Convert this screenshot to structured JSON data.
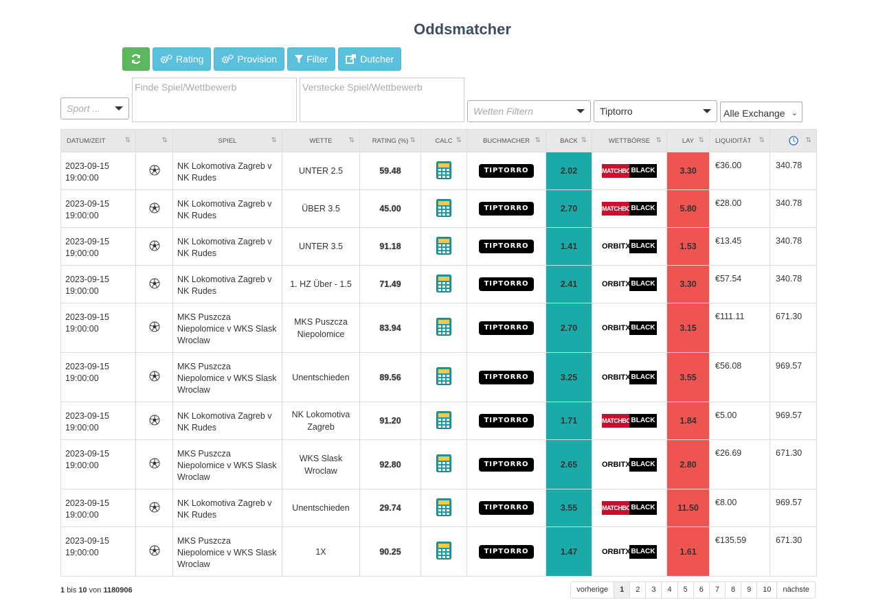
{
  "page": {
    "title": "Oddsmatcher"
  },
  "toolbar": {
    "refresh_icon": "refresh-icon",
    "rating_label": "Rating",
    "provision_label": "Provision",
    "filter_label": "Filter",
    "dutcher_label": "Dutcher"
  },
  "filters": {
    "sport_placeholder": "Sport ...",
    "find_placeholder": "Finde Spiel/Wettbewerb",
    "hide_placeholder": "Verstecke Spiel/Wettbewerb",
    "bets_placeholder": "Wetten Filtern",
    "bookmaker_value": "Tiptorro",
    "exchange_value": "Alle Exchange"
  },
  "table": {
    "headers": {
      "datetime": "DATUM/ZEIT",
      "game": "SPIEL",
      "bet": "WETTE",
      "rating": "RATING (%)",
      "calc": "CALC",
      "bookmaker": "BUCHMACHER",
      "back": "BACK",
      "exchange": "WETTBÖRSE",
      "lay": "LAY",
      "liquidity": "LIQUIDITÄT"
    },
    "rows": [
      {
        "date": "2023-09-15",
        "time": "19:00:00",
        "game": "NK Lokomotiva Zagreb v NK Rudes",
        "bet": "UNTER 2.5",
        "rating": "59.48",
        "bookmaker": "TIPTORRO",
        "back": "2.02",
        "exchange": "MATCHBOOK",
        "lay": "3.30",
        "liquidity": "€36.00",
        "time_val": "340.78"
      },
      {
        "date": "2023-09-15",
        "time": "19:00:00",
        "game": "NK Lokomotiva Zagreb v NK Rudes",
        "bet": "ÜBER 3.5",
        "rating": "45.00",
        "bookmaker": "TIPTORRO",
        "back": "2.70",
        "exchange": "MATCHBOOK",
        "lay": "5.80",
        "liquidity": "€28.00",
        "time_val": "340.78"
      },
      {
        "date": "2023-09-15",
        "time": "19:00:00",
        "game": "NK Lokomotiva Zagreb v NK Rudes",
        "bet": "UNTER 3.5",
        "rating": "91.18",
        "bookmaker": "TIPTORRO",
        "back": "1.41",
        "exchange": "ORBITX",
        "lay": "1.53",
        "liquidity": "€13.45",
        "time_val": "340.78"
      },
      {
        "date": "2023-09-15",
        "time": "19:00:00",
        "game": "NK Lokomotiva Zagreb v NK Rudes",
        "bet": "1. HZ Über - 1.5",
        "rating": "71.49",
        "bookmaker": "TIPTORRO",
        "back": "2.41",
        "exchange": "ORBITX",
        "lay": "3.30",
        "liquidity": "€57.54",
        "time_val": "340.78"
      },
      {
        "date": "2023-09-15",
        "time": "19:00:00",
        "game": "MKS Puszcza Niepolomice v WKS Slask Wroclaw",
        "bet": "MKS Puszcza Niepolomice",
        "rating": "83.94",
        "bookmaker": "TIPTORRO",
        "back": "2.70",
        "exchange": "ORBITX",
        "lay": "3.15",
        "liquidity": "€111.11",
        "time_val": "671.30"
      },
      {
        "date": "2023-09-15",
        "time": "19:00:00",
        "game": "MKS Puszcza Niepolomice v WKS Slask Wroclaw",
        "bet": "Unentschieden",
        "rating": "89.56",
        "bookmaker": "TIPTORRO",
        "back": "3.25",
        "exchange": "ORBITX",
        "lay": "3.55",
        "liquidity": "€56.08",
        "time_val": "969.57"
      },
      {
        "date": "2023-09-15",
        "time": "19:00:00",
        "game": "NK Lokomotiva Zagreb v NK Rudes",
        "bet": "NK Lokomotiva Zagreb",
        "rating": "91.20",
        "bookmaker": "TIPTORRO",
        "back": "1.71",
        "exchange": "MATCHBOOK",
        "lay": "1.84",
        "liquidity": "€5.00",
        "time_val": "969.57"
      },
      {
        "date": "2023-09-15",
        "time": "19:00:00",
        "game": "MKS Puszcza Niepolomice v WKS Slask Wroclaw",
        "bet": "WKS Slask Wroclaw",
        "rating": "92.80",
        "bookmaker": "TIPTORRO",
        "back": "2.65",
        "exchange": "ORBITX",
        "lay": "2.80",
        "liquidity": "€26.69",
        "time_val": "671.30"
      },
      {
        "date": "2023-09-15",
        "time": "19:00:00",
        "game": "NK Lokomotiva Zagreb v NK Rudes",
        "bet": "Unentschieden",
        "rating": "29.74",
        "bookmaker": "TIPTORRO",
        "back": "3.55",
        "exchange": "MATCHBOOK",
        "lay": "11.50",
        "liquidity": "€8.00",
        "time_val": "969.57"
      },
      {
        "date": "2023-09-15",
        "time": "19:00:00",
        "game": "MKS Puszcza Niepolomice v WKS Slask Wroclaw",
        "bet": "1X",
        "rating": "90.25",
        "bookmaker": "TIPTORRO",
        "back": "1.47",
        "exchange": "ORBITX",
        "lay": "1.61",
        "liquidity": "€135.59",
        "time_val": "671.30"
      }
    ]
  },
  "exchange_suffix": "BLACK",
  "pagination": {
    "from": "1",
    "bis_label": "bis",
    "to": "10",
    "von_label": "von",
    "total": "1180906",
    "prev_label": "vorherige",
    "next_label": "nächste",
    "pages": [
      "1",
      "2",
      "3",
      "4",
      "5",
      "6",
      "7",
      "8",
      "9",
      "10"
    ]
  },
  "colors": {
    "back": "#1aaaa8",
    "lay": "#ee5450",
    "accent": "#5bc0de",
    "refresh": "#5cb85c"
  }
}
